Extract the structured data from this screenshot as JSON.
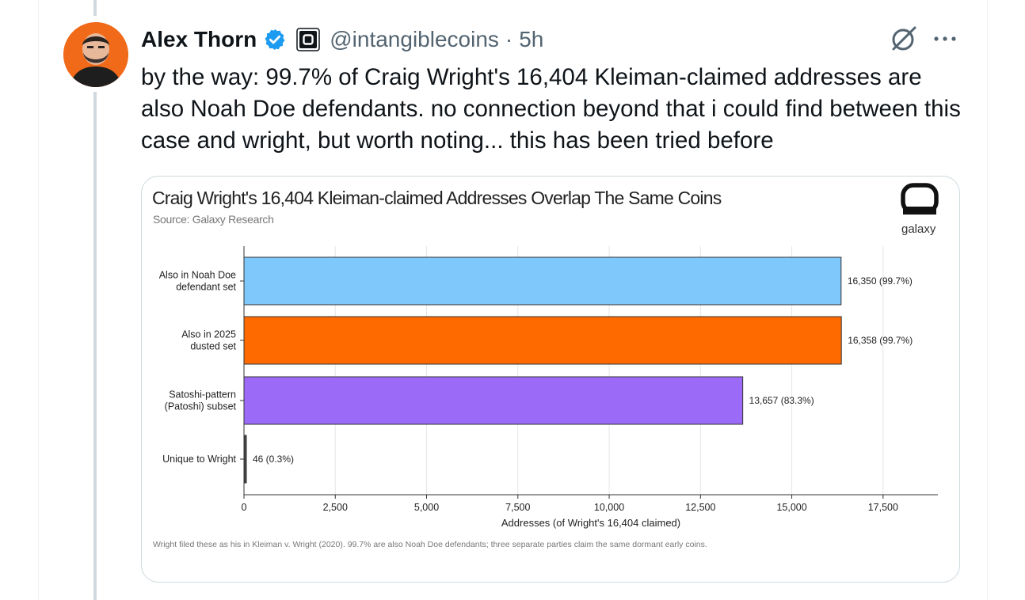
{
  "tweet": {
    "author_name": "Alex Thorn",
    "handle": "@intangiblecoins",
    "separator": "·",
    "time": "5h",
    "text": "by the way: 99.7% of Craig Wright's 16,404 Kleiman-claimed addresses are also Noah Doe defendants. no connection beyond that i could find between this case and wright, but worth noting... this has been tried before"
  },
  "icons": {
    "verified": "verified-badge-icon",
    "affiliate": "affiliate-badge-icon",
    "grok": "grok-icon",
    "more": "more-options-icon"
  },
  "colors": {
    "verified_blue": "#1d9bf0",
    "avatar_orange": "#f06a1a",
    "bar_blue": "#7ec8fb",
    "bar_orange": "#ff6a00",
    "bar_purple": "#9b6bf7",
    "bar_dark": "#444444"
  },
  "chart": {
    "title": "Craig Wright's 16,404 Kleiman-claimed Addresses Overlap The Same Coins",
    "source": "Source: Galaxy Research",
    "brand": "galaxy",
    "footnote": "Wright filed these as his in Kleiman v. Wright (2020). 99.7% are also Noah Doe defendants; three separate parties claim the same dormant early coins."
  },
  "chart_data": {
    "type": "bar",
    "orientation": "horizontal",
    "title": "Craig Wright's 16,404 Kleiman-claimed Addresses Overlap The Same Coins",
    "xlabel": "Addresses (of Wright's 16,404 claimed)",
    "xlim": [
      0,
      19000
    ],
    "xticks": [
      "0",
      "2,500",
      "5,000",
      "7,500",
      "10,000",
      "12,500",
      "15,000",
      "17,500"
    ],
    "xtick_values": [
      0,
      2500,
      5000,
      7500,
      10000,
      12500,
      15000,
      17500
    ],
    "categories": [
      [
        "Also in Noah Doe",
        "defendant set"
      ],
      [
        "Also in 2025",
        "dusted set"
      ],
      [
        "Satoshi-pattern",
        "(Patoshi) subset"
      ],
      [
        "Unique to Wright"
      ]
    ],
    "values": [
      16350,
      16358,
      13657,
      46
    ],
    "data_labels": [
      "16,350  (99.7%)",
      "16,358  (99.7%)",
      "13,657  (83.3%)",
      "46  (0.3%)"
    ],
    "bar_colors": [
      "#7ec8fb",
      "#ff6a00",
      "#9b6bf7",
      "#444444"
    ],
    "grid": "vertical"
  }
}
